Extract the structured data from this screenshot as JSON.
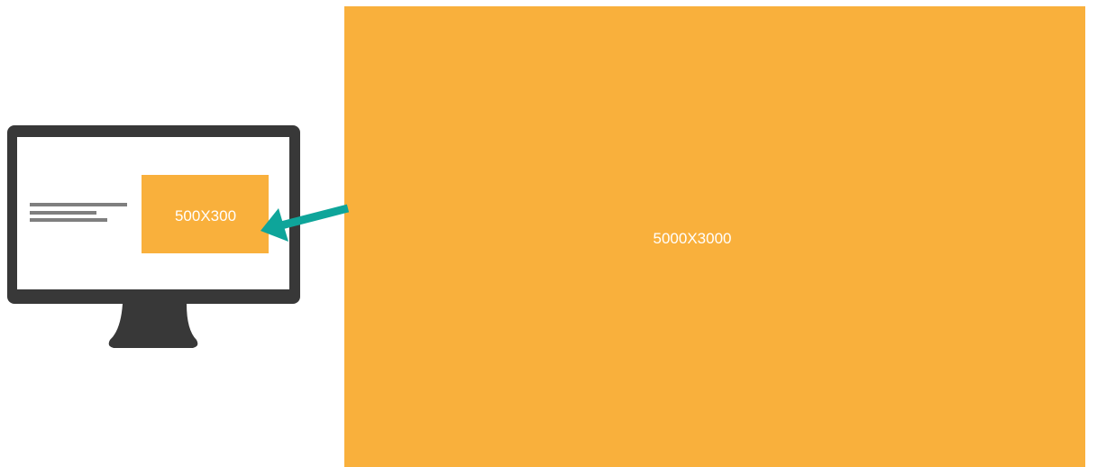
{
  "diagram": {
    "small_image_label": "500X300",
    "large_image_label": "5000X3000",
    "colors": {
      "image_fill": "#F9B03C",
      "arrow": "#0EA59A",
      "monitor_frame": "#383838",
      "screen_bg": "#FFFFFF",
      "text_lines": "#7F7F7F",
      "label_text": "#FFFFFF"
    },
    "icons": [
      "monitor-icon",
      "arrow-icon"
    ]
  }
}
